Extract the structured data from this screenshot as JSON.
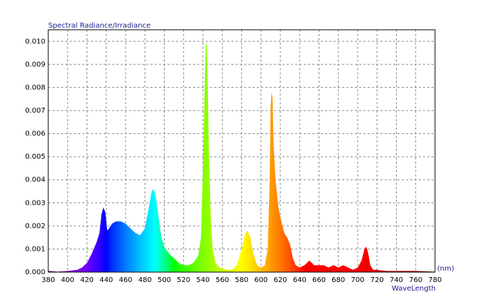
{
  "chart_data": {
    "type": "area",
    "title": "Spectral Radiance/Irradiance",
    "x_unit": "(nm)",
    "x_label": "WaveLength",
    "x": [
      380,
      390,
      400,
      410,
      415,
      420,
      425,
      430,
      433,
      435,
      437,
      439,
      441,
      443,
      446,
      450,
      455,
      460,
      465,
      470,
      475,
      480,
      484,
      487,
      489,
      491,
      494,
      497,
      500,
      505,
      510,
      515,
      520,
      525,
      530,
      535,
      538,
      540,
      542,
      543,
      544,
      545,
      546,
      548,
      550,
      553,
      557,
      565,
      570,
      575,
      580,
      584,
      586,
      589,
      592,
      596,
      600,
      604,
      607,
      609,
      610,
      611,
      612,
      613,
      615,
      618,
      621,
      624,
      627,
      630,
      633,
      636,
      640,
      645,
      650,
      655,
      660,
      665,
      670,
      675,
      680,
      685,
      690,
      695,
      700,
      704,
      707,
      709,
      711,
      713,
      716,
      720,
      730,
      740,
      760,
      780
    ],
    "values": [
      5e-05,
      2e-05,
      5e-05,
      0.0001,
      0.0002,
      0.0004,
      0.0008,
      0.0013,
      0.0017,
      0.0025,
      0.0028,
      0.0026,
      0.0018,
      0.0019,
      0.0021,
      0.0022,
      0.0022,
      0.0021,
      0.0019,
      0.0017,
      0.0016,
      0.0019,
      0.0028,
      0.0035,
      0.0036,
      0.0033,
      0.0024,
      0.0015,
      0.0011,
      0.0008,
      0.0006,
      0.0004,
      0.0003,
      0.0003,
      0.0004,
      0.0007,
      0.0015,
      0.0045,
      0.0085,
      0.0099,
      0.0098,
      0.008,
      0.0055,
      0.0025,
      0.001,
      0.0004,
      0.0002,
      0.0001,
      0.0001,
      0.0003,
      0.001,
      0.0017,
      0.0018,
      0.0015,
      0.0008,
      0.0003,
      0.0002,
      0.0003,
      0.001,
      0.004,
      0.0072,
      0.0078,
      0.0075,
      0.0055,
      0.004,
      0.0028,
      0.0022,
      0.0017,
      0.0015,
      0.0012,
      0.0006,
      0.0003,
      0.0002,
      0.0003,
      0.0005,
      0.0003,
      0.0003,
      0.0003,
      0.0002,
      0.0003,
      0.0002,
      0.0003,
      0.0002,
      0.0001,
      0.0002,
      0.0005,
      0.001,
      0.0011,
      0.0008,
      0.0003,
      0.0001,
      0.0001,
      5e-05,
      5e-05,
      5e-05,
      2e-05
    ],
    "xlim": [
      380,
      780
    ],
    "xticks": [
      380,
      400,
      420,
      440,
      460,
      480,
      500,
      520,
      540,
      560,
      580,
      600,
      620,
      640,
      660,
      680,
      700,
      720,
      740,
      760,
      780
    ],
    "ylim": [
      0,
      0.0105
    ],
    "yticks": [
      {
        "value": 0,
        "label": "0.000"
      },
      {
        "value": 0.001,
        "label": "0.001"
      },
      {
        "value": 0.002,
        "label": "0.002"
      },
      {
        "value": 0.003,
        "label": "0.003"
      },
      {
        "value": 0.004,
        "label": "0.004"
      },
      {
        "value": 0.005,
        "label": "0.005"
      },
      {
        "value": 0.006,
        "label": "0.006"
      },
      {
        "value": 0.007,
        "label": "0.007"
      },
      {
        "value": 0.008,
        "label": "0.008"
      },
      {
        "value": 0.009,
        "label": "0.009"
      },
      {
        "value": 0.01,
        "label": "0.010"
      }
    ],
    "grid": true
  }
}
